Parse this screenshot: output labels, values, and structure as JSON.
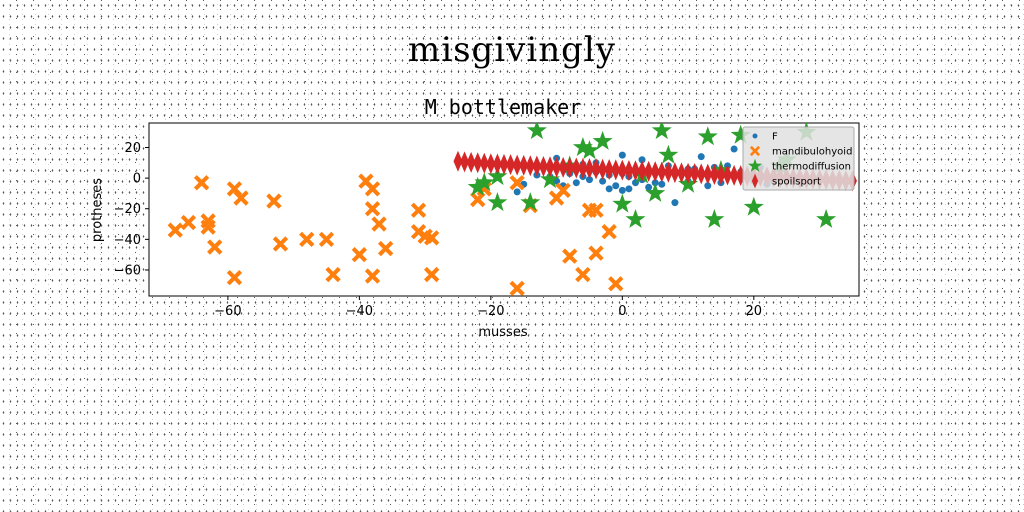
{
  "suptitle": "misgivingly",
  "chart_data": {
    "type": "scatter",
    "title": "M bottlemaker",
    "xlabel": "musses",
    "ylabel": "protheses",
    "xlim": [
      -72,
      36
    ],
    "ylim": [
      -77,
      36
    ],
    "xticks": [
      -60,
      -40,
      -20,
      0,
      20
    ],
    "xticklabels": [
      "−60",
      "−40",
      "−20",
      "0",
      "20"
    ],
    "yticks": [
      20,
      0,
      -20,
      -40,
      -60
    ],
    "yticklabels": [
      "20",
      "0",
      "−20",
      "−40",
      "−60"
    ],
    "grid": false,
    "legend_position": "top-right",
    "series": [
      {
        "name": "F",
        "marker": "circle",
        "color": "#1f77b4",
        "points": [
          [
            -16,
            -9
          ],
          [
            -15,
            -4
          ],
          [
            -13,
            2
          ],
          [
            -11,
            1
          ],
          [
            -10,
            -2
          ],
          [
            -9,
            -5
          ],
          [
            -8,
            3
          ],
          [
            -7,
            -3
          ],
          [
            -6,
            1
          ],
          [
            -5,
            -1
          ],
          [
            -4,
            4
          ],
          [
            -3,
            -2
          ],
          [
            -2,
            2
          ],
          [
            -1,
            -5
          ],
          [
            0,
            -8
          ],
          [
            0,
            3
          ],
          [
            1,
            -7
          ],
          [
            1,
            1
          ],
          [
            2,
            -3
          ],
          [
            2,
            5
          ],
          [
            3,
            -1
          ],
          [
            4,
            -6
          ],
          [
            5,
            3
          ],
          [
            6,
            -4
          ],
          [
            7,
            8
          ],
          [
            8,
            -16
          ],
          [
            9,
            3
          ],
          [
            10,
            -2
          ],
          [
            11,
            6
          ],
          [
            12,
            14
          ],
          [
            13,
            -5
          ],
          [
            14,
            7
          ],
          [
            15,
            -3
          ],
          [
            16,
            8
          ],
          [
            17,
            19
          ],
          [
            18,
            4
          ],
          [
            20,
            -2
          ],
          [
            21,
            7
          ],
          [
            22,
            -4
          ],
          [
            23,
            -2
          ],
          [
            -10,
            13
          ],
          [
            -6,
            9
          ],
          [
            -4,
            10
          ],
          [
            0,
            15
          ],
          [
            3,
            12
          ],
          [
            -2,
            -7
          ],
          [
            5,
            -3
          ],
          [
            10,
            6
          ]
        ]
      },
      {
        "name": "mandibulohyoid",
        "marker": "x",
        "color": "#ff7f0e",
        "points": [
          [
            -68,
            -34
          ],
          [
            -66,
            -29
          ],
          [
            -64,
            -3
          ],
          [
            -63,
            -28
          ],
          [
            -63,
            -32
          ],
          [
            -62,
            -45
          ],
          [
            -59,
            -7
          ],
          [
            -59,
            -65
          ],
          [
            -58,
            -13
          ],
          [
            -53,
            -15
          ],
          [
            -52,
            -43
          ],
          [
            -48,
            -40
          ],
          [
            -45,
            -40
          ],
          [
            -44,
            -63
          ],
          [
            -40,
            -50
          ],
          [
            -39,
            -2
          ],
          [
            -38,
            -7
          ],
          [
            -38,
            -20
          ],
          [
            -38,
            -64
          ],
          [
            -37,
            -30
          ],
          [
            -36,
            -46
          ],
          [
            -31,
            -21
          ],
          [
            -31,
            -35
          ],
          [
            -30,
            -38
          ],
          [
            -29,
            -39
          ],
          [
            -29,
            -63
          ],
          [
            -22,
            -14
          ],
          [
            -21,
            -7
          ],
          [
            -16,
            -72
          ],
          [
            -16,
            -3
          ],
          [
            -14,
            -18
          ],
          [
            -10,
            -13
          ],
          [
            -8,
            -51
          ],
          [
            -6,
            -63
          ],
          [
            -5,
            -21
          ],
          [
            -4,
            -49
          ],
          [
            -4,
            -21
          ],
          [
            -2,
            -35
          ],
          [
            -1,
            -69
          ],
          [
            -9,
            -8
          ]
        ]
      },
      {
        "name": "thermodiffusion",
        "marker": "star",
        "color": "#2ca02c",
        "points": [
          [
            -22,
            -6
          ],
          [
            -21,
            -3
          ],
          [
            -19,
            -16
          ],
          [
            -19,
            1
          ],
          [
            -14,
            -16
          ],
          [
            -13,
            31
          ],
          [
            -11,
            -1
          ],
          [
            -6,
            20
          ],
          [
            -5,
            18
          ],
          [
            -3,
            24
          ],
          [
            0,
            -17
          ],
          [
            2,
            -27
          ],
          [
            5,
            -10
          ],
          [
            6,
            31
          ],
          [
            7,
            15
          ],
          [
            10,
            -4
          ],
          [
            13,
            27
          ],
          [
            14,
            -27
          ],
          [
            15,
            5
          ],
          [
            18,
            28
          ],
          [
            20,
            -19
          ],
          [
            24,
            8
          ],
          [
            25,
            12
          ],
          [
            28,
            30
          ],
          [
            31,
            -27
          ],
          [
            -8,
            8
          ],
          [
            3,
            2
          ]
        ]
      },
      {
        "name": "spoilsport",
        "marker": "thin_diamond",
        "color": "#d62728",
        "points": [
          [
            -25,
            11
          ],
          [
            -24,
            10.6
          ],
          [
            -23,
            10.3
          ],
          [
            -22,
            10
          ],
          [
            -21,
            9.7
          ],
          [
            -20,
            9.4
          ],
          [
            -19,
            9.2
          ],
          [
            -18,
            9
          ],
          [
            -17,
            8.8
          ],
          [
            -16,
            8.5
          ],
          [
            -15,
            8.3
          ],
          [
            -14,
            8.1
          ],
          [
            -13,
            7.9
          ],
          [
            -12,
            7.6
          ],
          [
            -11,
            7.4
          ],
          [
            -10,
            7.2
          ],
          [
            -9,
            7
          ],
          [
            -8,
            6.8
          ],
          [
            -7,
            6.6
          ],
          [
            -6,
            6.4
          ],
          [
            -5,
            6.2
          ],
          [
            -4,
            6
          ],
          [
            -3,
            5.8
          ],
          [
            -2,
            5.6
          ],
          [
            -1,
            5.4
          ],
          [
            0,
            5.2
          ],
          [
            1,
            5
          ],
          [
            2,
            4.8
          ],
          [
            3,
            4.6
          ],
          [
            4,
            4.4
          ],
          [
            5,
            4.2
          ],
          [
            6,
            4
          ],
          [
            7,
            3.8
          ],
          [
            8,
            3.6
          ],
          [
            9,
            3.4
          ],
          [
            10,
            3.2
          ],
          [
            11,
            3
          ],
          [
            12,
            2.8
          ],
          [
            13,
            2.6
          ],
          [
            14,
            2.4
          ],
          [
            15,
            2.2
          ],
          [
            16,
            2
          ],
          [
            17,
            1.8
          ],
          [
            18,
            1.6
          ],
          [
            19,
            1.4
          ],
          [
            20,
            1.2
          ],
          [
            21,
            1
          ],
          [
            22,
            0.8
          ],
          [
            23,
            0.6
          ],
          [
            24,
            0.4
          ],
          [
            25,
            0.2
          ],
          [
            26,
            0
          ],
          [
            27,
            -0.2
          ],
          [
            28,
            -0.4
          ],
          [
            29,
            -0.6
          ],
          [
            30,
            -0.8
          ],
          [
            31,
            -1
          ],
          [
            32,
            -1.2
          ],
          [
            33,
            -1.4
          ],
          [
            34,
            -1.6
          ],
          [
            35,
            -1.8
          ]
        ]
      }
    ]
  }
}
